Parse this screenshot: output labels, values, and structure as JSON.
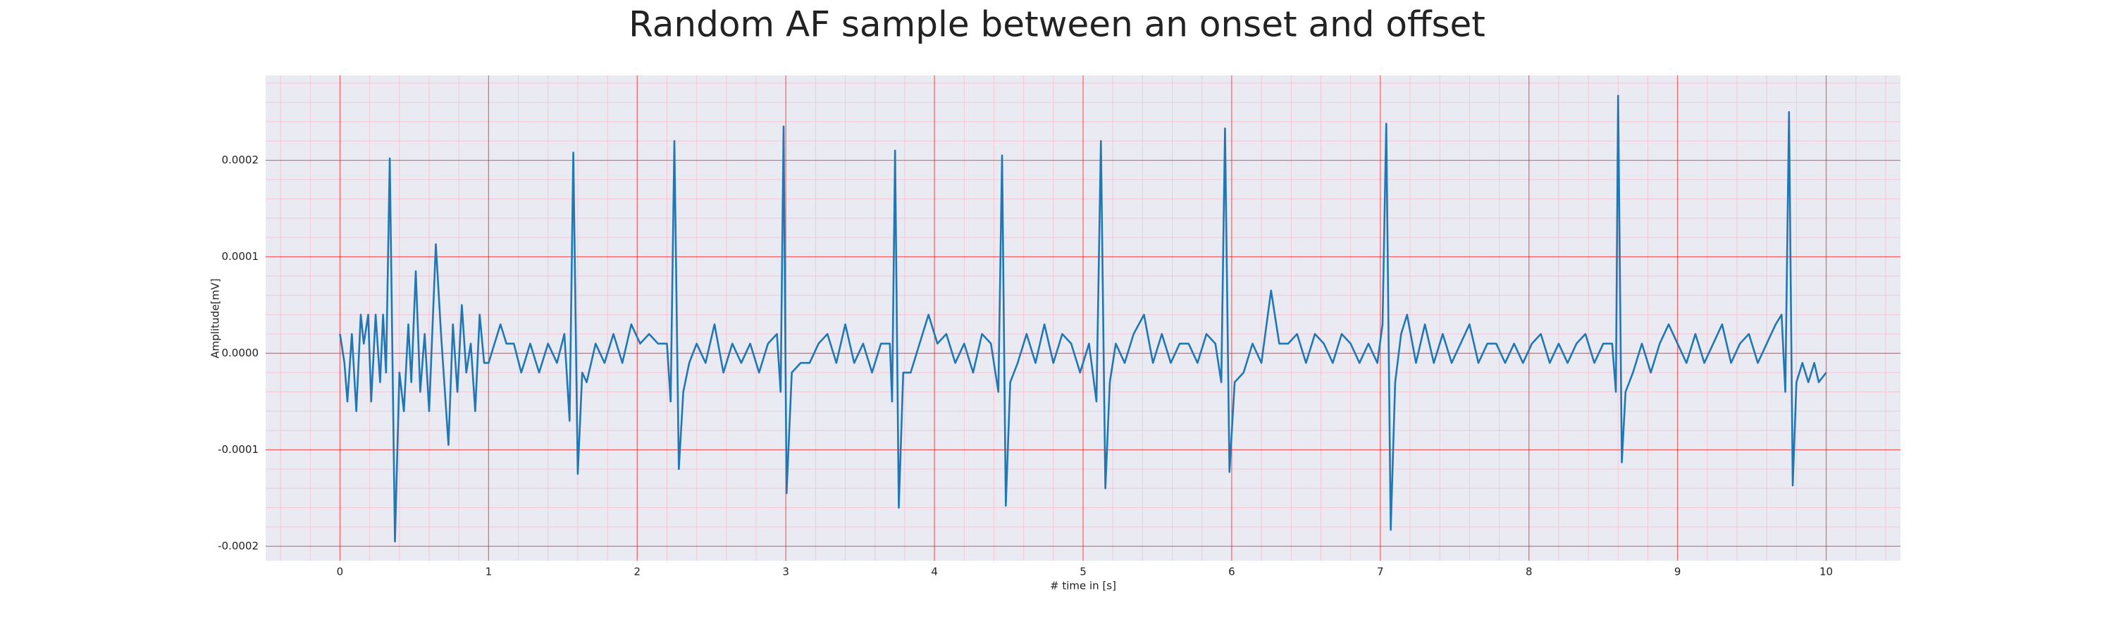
{
  "chart_data": {
    "type": "line",
    "title": "Random AF sample between an onset and offset",
    "xlabel": "# time in [s]",
    "ylabel": "Amplitude[mV]",
    "color": "#1f77b4",
    "grid": true,
    "grid_color": "#ff0000",
    "minor_grid_color": "#ffb6c8",
    "xlim": [
      -0.5,
      10.5
    ],
    "ylim": [
      -0.000215,
      0.000288
    ],
    "xticks": [
      0,
      1,
      2,
      3,
      4,
      5,
      6,
      7,
      8,
      9,
      10
    ],
    "yticks": [
      -0.0002,
      -0.0001,
      {
        "value": 0,
        "label": "0.0000"
      },
      0.0001,
      0.0002
    ],
    "xminorticks": [
      -0.4,
      -0.2,
      0.2,
      0.4,
      0.6,
      0.8,
      1.2,
      1.4,
      1.6,
      1.8,
      2.2,
      2.4,
      2.6,
      2.8,
      3.2,
      3.4,
      3.6,
      3.8,
      4.2,
      4.4,
      4.6,
      4.8,
      5.2,
      5.4,
      5.6,
      5.8,
      6.2,
      6.4,
      6.6,
      6.8,
      7.2,
      7.4,
      7.6,
      7.8,
      8.2,
      8.4,
      8.6,
      8.8,
      9.2,
      9.4,
      9.6,
      9.8,
      10.2,
      10.4
    ],
    "yminorticks": [
      -0.00018,
      -0.00016,
      -0.00014,
      -0.00012,
      -8e-05,
      -6e-05,
      -4e-05,
      -2e-05,
      2e-05,
      4e-05,
      6e-05,
      8e-05,
      0.00012,
      0.00014,
      0.00016,
      0.00018,
      0.00022,
      0.00024,
      0.00026,
      0.00028
    ],
    "x": [
      0.0,
      0.03,
      0.05,
      0.08,
      0.11,
      0.14,
      0.16,
      0.19,
      0.21,
      0.24,
      0.27,
      0.29,
      0.31,
      0.335,
      0.37,
      0.4,
      0.43,
      0.46,
      0.48,
      0.51,
      0.54,
      0.57,
      0.6,
      0.645,
      0.68,
      0.73,
      0.76,
      0.79,
      0.82,
      0.85,
      0.88,
      0.91,
      0.94,
      0.97,
      1.0,
      1.04,
      1.08,
      1.12,
      1.17,
      1.22,
      1.28,
      1.34,
      1.4,
      1.46,
      1.51,
      1.545,
      1.57,
      1.6,
      1.63,
      1.66,
      1.72,
      1.78,
      1.84,
      1.9,
      1.96,
      2.02,
      2.08,
      2.14,
      2.2,
      2.225,
      2.25,
      2.28,
      2.31,
      2.35,
      2.4,
      2.46,
      2.52,
      2.58,
      2.64,
      2.7,
      2.76,
      2.82,
      2.88,
      2.94,
      2.965,
      2.985,
      3.005,
      3.04,
      3.1,
      3.16,
      3.22,
      3.28,
      3.34,
      3.4,
      3.46,
      3.52,
      3.58,
      3.64,
      3.7,
      3.715,
      3.735,
      3.76,
      3.79,
      3.84,
      3.9,
      3.96,
      4.02,
      4.08,
      4.14,
      4.2,
      4.26,
      4.32,
      4.38,
      4.43,
      4.455,
      4.48,
      4.51,
      4.56,
      4.62,
      4.68,
      4.74,
      4.8,
      4.86,
      4.92,
      4.98,
      5.04,
      5.09,
      5.12,
      5.15,
      5.18,
      5.22,
      5.28,
      5.34,
      5.41,
      5.47,
      5.53,
      5.59,
      5.65,
      5.71,
      5.77,
      5.83,
      5.89,
      5.93,
      5.955,
      5.985,
      6.02,
      6.08,
      6.14,
      6.2,
      6.265,
      6.32,
      6.38,
      6.44,
      6.5,
      6.56,
      6.62,
      6.68,
      6.74,
      6.8,
      6.86,
      6.92,
      6.98,
      7.015,
      7.04,
      7.07,
      7.1,
      7.14,
      7.18,
      7.24,
      7.3,
      7.36,
      7.42,
      7.48,
      7.54,
      7.6,
      7.66,
      7.72,
      7.78,
      7.84,
      7.9,
      7.96,
      8.02,
      8.08,
      8.14,
      8.2,
      8.26,
      8.32,
      8.38,
      8.44,
      8.5,
      8.56,
      8.585,
      8.6,
      8.625,
      8.65,
      8.7,
      8.76,
      8.82,
      8.88,
      8.94,
      9.0,
      9.06,
      9.12,
      9.18,
      9.24,
      9.3,
      9.36,
      9.42,
      9.48,
      9.54,
      9.6,
      9.66,
      9.7,
      9.725,
      9.75,
      9.775,
      9.8,
      9.84,
      9.88,
      9.92,
      9.95,
      10.0
    ],
    "values": [
      2e-05,
      -1e-05,
      -5e-05,
      2e-05,
      -6e-05,
      4e-05,
      1e-05,
      4e-05,
      -5e-05,
      4e-05,
      -3e-05,
      4e-05,
      -2e-05,
      0.000202,
      -0.000195,
      -2e-05,
      -6e-05,
      3e-05,
      -3e-05,
      8.5e-05,
      -4e-05,
      2e-05,
      -6e-05,
      0.000113,
      2e-05,
      -9.5e-05,
      3e-05,
      -4e-05,
      5e-05,
      -2e-05,
      1e-05,
      -6e-05,
      4e-05,
      -1e-05,
      -1e-05,
      1e-05,
      3e-05,
      1e-05,
      1e-05,
      -2e-05,
      1e-05,
      -2e-05,
      1e-05,
      -1e-05,
      2e-05,
      -7e-05,
      0.000208,
      -0.000125,
      -2e-05,
      -3e-05,
      1e-05,
      -1e-05,
      2e-05,
      -1e-05,
      3e-05,
      1e-05,
      2e-05,
      1e-05,
      1e-05,
      -5e-05,
      0.00022,
      -0.00012,
      -4e-05,
      -1e-05,
      1e-05,
      -1e-05,
      3e-05,
      -2e-05,
      1e-05,
      -1e-05,
      1e-05,
      -2e-05,
      1e-05,
      2e-05,
      -4e-05,
      0.000235,
      -0.000145,
      -2e-05,
      -1e-05,
      -1e-05,
      1e-05,
      2e-05,
      -1e-05,
      3e-05,
      -1e-05,
      1e-05,
      -2e-05,
      1e-05,
      1e-05,
      -5e-05,
      0.00021,
      -0.00016,
      -2e-05,
      -2e-05,
      1e-05,
      4e-05,
      1e-05,
      2e-05,
      -1e-05,
      1e-05,
      -2e-05,
      2e-05,
      1e-05,
      -4e-05,
      0.000205,
      -0.000158,
      -3e-05,
      -1e-05,
      2e-05,
      -1e-05,
      3e-05,
      -1e-05,
      2e-05,
      1e-05,
      -2e-05,
      1e-05,
      -5e-05,
      0.00022,
      -0.00014,
      -3e-05,
      1e-05,
      -1e-05,
      2e-05,
      4e-05,
      -1e-05,
      2e-05,
      -1e-05,
      1e-05,
      1e-05,
      -1e-05,
      2e-05,
      1e-05,
      -3e-05,
      0.000233,
      -0.000123,
      -3e-05,
      -2e-05,
      1e-05,
      -1e-05,
      6.5e-05,
      1e-05,
      1e-05,
      2e-05,
      -1e-05,
      2e-05,
      1e-05,
      -1e-05,
      2e-05,
      1e-05,
      -1e-05,
      1e-05,
      -1e-05,
      3e-05,
      0.000238,
      -0.000183,
      -3e-05,
      2e-05,
      4e-05,
      -1e-05,
      3e-05,
      -1e-05,
      2e-05,
      -1e-05,
      1e-05,
      3e-05,
      -1e-05,
      1e-05,
      1e-05,
      -1e-05,
      1e-05,
      -1e-05,
      1e-05,
      2e-05,
      -1e-05,
      1e-05,
      -1e-05,
      1e-05,
      2e-05,
      -1e-05,
      1e-05,
      1e-05,
      -4e-05,
      0.000267,
      -0.000113,
      -4e-05,
      -2e-05,
      1e-05,
      -2e-05,
      1e-05,
      3e-05,
      1e-05,
      -1e-05,
      2e-05,
      -1e-05,
      1e-05,
      3e-05,
      -1e-05,
      1e-05,
      2e-05,
      -1e-05,
      1e-05,
      3e-05,
      4e-05,
      -4e-05,
      0.00025,
      -0.000137,
      -3e-05,
      -1e-05,
      -3e-05,
      -1e-05,
      -3e-05,
      -2e-05
    ]
  }
}
